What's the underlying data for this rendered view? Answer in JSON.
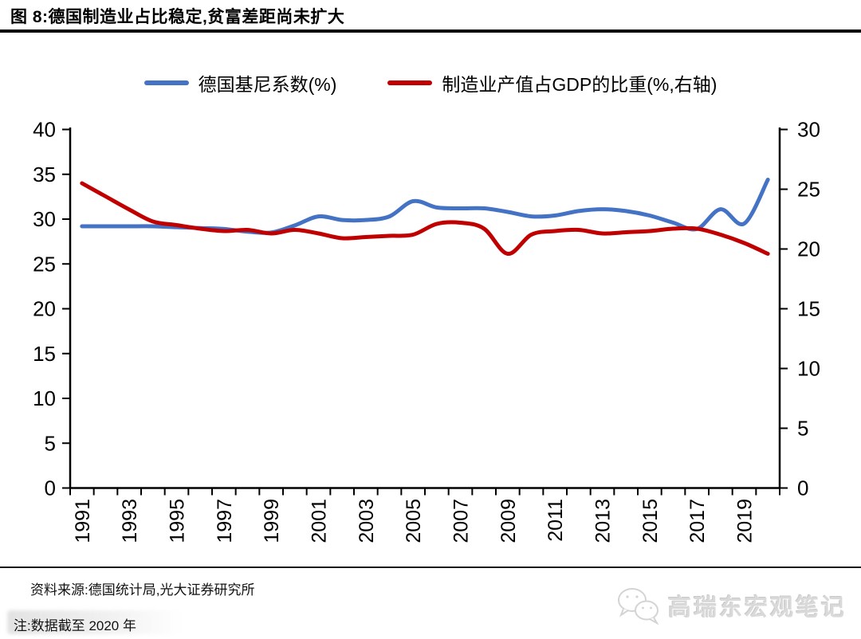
{
  "header": {
    "title": "图 8:德国制造业占比稳定,贫富差距尚未扩大"
  },
  "legend": [
    {
      "label": "德国基尼系数(%)",
      "color": "#4472C4"
    },
    {
      "label": "制造业产值占GDP的比重(%,右轴)",
      "color": "#C00000"
    }
  ],
  "chart_data": {
    "type": "line",
    "x": [
      1991,
      1992,
      1993,
      1994,
      1995,
      1996,
      1997,
      1998,
      1999,
      2000,
      2001,
      2002,
      2003,
      2004,
      2005,
      2006,
      2007,
      2008,
      2009,
      2010,
      2011,
      2012,
      2013,
      2014,
      2015,
      2016,
      2017,
      2018,
      2019,
      2020
    ],
    "series": [
      {
        "name": "德国基尼系数(%)",
        "axis": "left",
        "color": "#4472C4",
        "values": [
          29.2,
          29.2,
          29.2,
          29.2,
          29.1,
          29.0,
          28.9,
          28.6,
          28.5,
          29.3,
          30.3,
          29.9,
          29.9,
          30.3,
          32.0,
          31.3,
          31.2,
          31.2,
          30.8,
          30.3,
          30.4,
          30.9,
          31.1,
          30.9,
          30.4,
          29.6,
          28.9,
          31.1,
          29.5,
          34.4
        ]
      },
      {
        "name": "制造业产值占GDP的比重(%,右轴)",
        "axis": "right",
        "color": "#C00000",
        "values": [
          25.5,
          24.4,
          23.3,
          22.3,
          22.0,
          21.7,
          21.5,
          21.6,
          21.3,
          21.6,
          21.3,
          20.9,
          21.0,
          21.1,
          21.2,
          22.1,
          22.2,
          21.7,
          19.6,
          21.2,
          21.5,
          21.6,
          21.3,
          21.4,
          21.5,
          21.7,
          21.7,
          21.2,
          20.5,
          19.6
        ]
      }
    ],
    "left_axis": {
      "min": 0,
      "max": 40,
      "ticks": [
        0,
        5,
        10,
        15,
        20,
        25,
        30,
        35,
        40
      ]
    },
    "right_axis": {
      "min": 0,
      "max": 30,
      "ticks": [
        0,
        5,
        10,
        15,
        20,
        25,
        30
      ]
    },
    "x_tick_labels": [
      "1991",
      "1993",
      "1995",
      "1997",
      "1999",
      "2001",
      "2003",
      "2005",
      "2007",
      "2009",
      "2011",
      "2013",
      "2015",
      "2017",
      "2019"
    ],
    "grid": false,
    "legend_position": "top"
  },
  "footer": {
    "source": "资料来源:德国统计局,光大证券研究所",
    "note": "注:数据截至 2020 年",
    "watermark": "高瑞东宏观笔记"
  }
}
